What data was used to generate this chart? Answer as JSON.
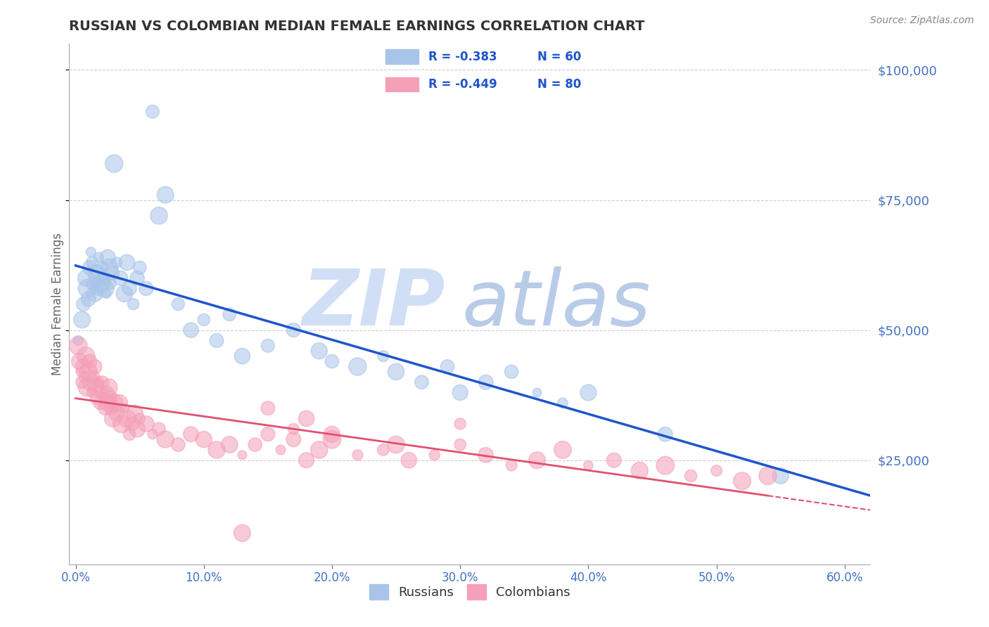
{
  "title": "RUSSIAN VS COLOMBIAN MEDIAN FEMALE EARNINGS CORRELATION CHART",
  "source_text": "Source: ZipAtlas.com",
  "ylabel": "Median Female Earnings",
  "xlim": [
    -0.005,
    0.62
  ],
  "ylim": [
    5000,
    105000
  ],
  "xtick_labels": [
    "0.0%",
    "10.0%",
    "20.0%",
    "30.0%",
    "40.0%",
    "50.0%",
    "60.0%"
  ],
  "xtick_vals": [
    0.0,
    0.1,
    0.2,
    0.3,
    0.4,
    0.5,
    0.6
  ],
  "ytick_vals": [
    25000,
    50000,
    75000,
    100000
  ],
  "ytick_labels": [
    "$25,000",
    "$50,000",
    "$75,000",
    "$100,000"
  ],
  "title_color": "#333333",
  "title_fontsize": 14,
  "axis_tick_color": "#4472C4",
  "watermark_zip": "ZIP",
  "watermark_atlas": "atlas",
  "watermark_color_zip": "#d0dff5",
  "watermark_color_atlas": "#b8cce8",
  "legend_R_russian": "-0.383",
  "legend_N_russian": "60",
  "legend_R_colombian": "-0.449",
  "legend_N_colombian": "80",
  "russian_color": "#a8c4e8",
  "colombian_color": "#f4a0b8",
  "russian_line_color": "#1f55cc",
  "colombian_line_color": "#e05070",
  "background_color": "#ffffff",
  "grid_color": "#c8c8d8",
  "right_axis_label_color": "#4472C4",
  "russians_x": [
    0.002,
    0.005,
    0.006,
    0.008,
    0.009,
    0.01,
    0.011,
    0.012,
    0.013,
    0.014,
    0.015,
    0.016,
    0.017,
    0.018,
    0.019,
    0.02,
    0.021,
    0.022,
    0.023,
    0.024,
    0.025,
    0.026,
    0.027,
    0.028,
    0.03,
    0.032,
    0.035,
    0.038,
    0.04,
    0.042,
    0.045,
    0.048,
    0.05,
    0.055,
    0.06,
    0.065,
    0.07,
    0.08,
    0.09,
    0.1,
    0.11,
    0.12,
    0.13,
    0.15,
    0.17,
    0.19,
    0.2,
    0.22,
    0.24,
    0.25,
    0.27,
    0.29,
    0.3,
    0.32,
    0.34,
    0.36,
    0.38,
    0.4,
    0.46,
    0.55
  ],
  "russians_y": [
    48000,
    52000,
    55000,
    60000,
    58000,
    56000,
    62000,
    65000,
    63000,
    59000,
    57000,
    61000,
    58000,
    64000,
    60000,
    59000,
    62000,
    60000,
    58000,
    57000,
    64000,
    62000,
    59000,
    61000,
    82000,
    63000,
    60000,
    57000,
    63000,
    58000,
    55000,
    60000,
    62000,
    58000,
    92000,
    72000,
    76000,
    55000,
    50000,
    52000,
    48000,
    53000,
    45000,
    47000,
    50000,
    46000,
    44000,
    43000,
    45000,
    42000,
    40000,
    43000,
    38000,
    40000,
    42000,
    38000,
    36000,
    38000,
    30000,
    22000
  ],
  "colombians_x": [
    0.002,
    0.003,
    0.004,
    0.005,
    0.006,
    0.007,
    0.008,
    0.009,
    0.01,
    0.011,
    0.012,
    0.013,
    0.014,
    0.015,
    0.016,
    0.017,
    0.018,
    0.019,
    0.02,
    0.021,
    0.022,
    0.023,
    0.024,
    0.025,
    0.026,
    0.027,
    0.028,
    0.029,
    0.03,
    0.032,
    0.034,
    0.036,
    0.038,
    0.04,
    0.042,
    0.044,
    0.046,
    0.048,
    0.05,
    0.055,
    0.06,
    0.065,
    0.07,
    0.08,
    0.09,
    0.1,
    0.11,
    0.12,
    0.13,
    0.14,
    0.15,
    0.16,
    0.17,
    0.18,
    0.19,
    0.2,
    0.22,
    0.24,
    0.26,
    0.28,
    0.3,
    0.32,
    0.34,
    0.36,
    0.38,
    0.4,
    0.42,
    0.44,
    0.46,
    0.48,
    0.5,
    0.52,
    0.54,
    0.3,
    0.15,
    0.2,
    0.25,
    0.17,
    0.18,
    0.13
  ],
  "colombians_y": [
    47000,
    44000,
    42000,
    40000,
    43000,
    41000,
    45000,
    39000,
    42000,
    44000,
    40000,
    38000,
    41000,
    43000,
    39000,
    37000,
    40000,
    36000,
    38000,
    40000,
    37000,
    35000,
    38000,
    36000,
    39000,
    37000,
    35000,
    33000,
    36000,
    34000,
    36000,
    32000,
    35000,
    33000,
    30000,
    32000,
    34000,
    31000,
    33000,
    32000,
    30000,
    31000,
    29000,
    28000,
    30000,
    29000,
    27000,
    28000,
    26000,
    28000,
    30000,
    27000,
    29000,
    25000,
    27000,
    29000,
    26000,
    27000,
    25000,
    26000,
    28000,
    26000,
    24000,
    25000,
    27000,
    24000,
    25000,
    23000,
    24000,
    22000,
    23000,
    21000,
    22000,
    32000,
    35000,
    30000,
    28000,
    31000,
    33000,
    11000
  ]
}
